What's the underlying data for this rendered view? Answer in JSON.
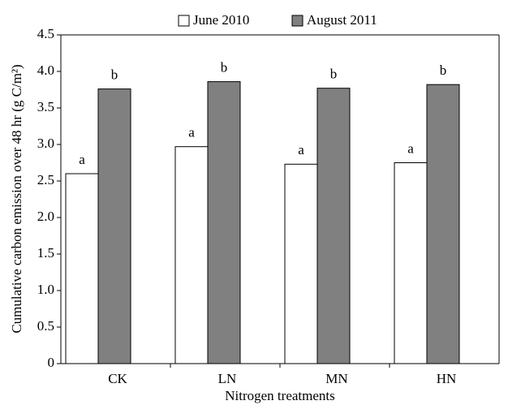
{
  "chart_data": {
    "type": "bar",
    "x_label": "Nitrogen treatments",
    "y_label": "Cumulative carbon emission over 48 hr (g C/m²)",
    "categories": [
      "CK",
      "LN",
      "MN",
      "HN"
    ],
    "series": [
      {
        "name": "June 2010",
        "color": "#ffffff",
        "values": [
          2.6,
          2.97,
          2.73,
          2.75
        ],
        "annotations": [
          "a",
          "a",
          "a",
          "a"
        ]
      },
      {
        "name": "August 2011",
        "color": "#808080",
        "values": [
          3.76,
          3.86,
          3.77,
          3.82
        ],
        "annotations": [
          "b",
          "b",
          "b",
          "b"
        ]
      }
    ],
    "ylim": [
      0,
      4.5
    ],
    "yticks": [
      0,
      0.5,
      {
        "value": 1,
        "label": "1.0"
      },
      1.5,
      {
        "value": 2,
        "label": "2.0"
      },
      2.5,
      {
        "value": 3,
        "label": "3.0"
      },
      3.5,
      {
        "value": 4,
        "label": "4.0"
      },
      4.5
    ],
    "legend": "top"
  }
}
